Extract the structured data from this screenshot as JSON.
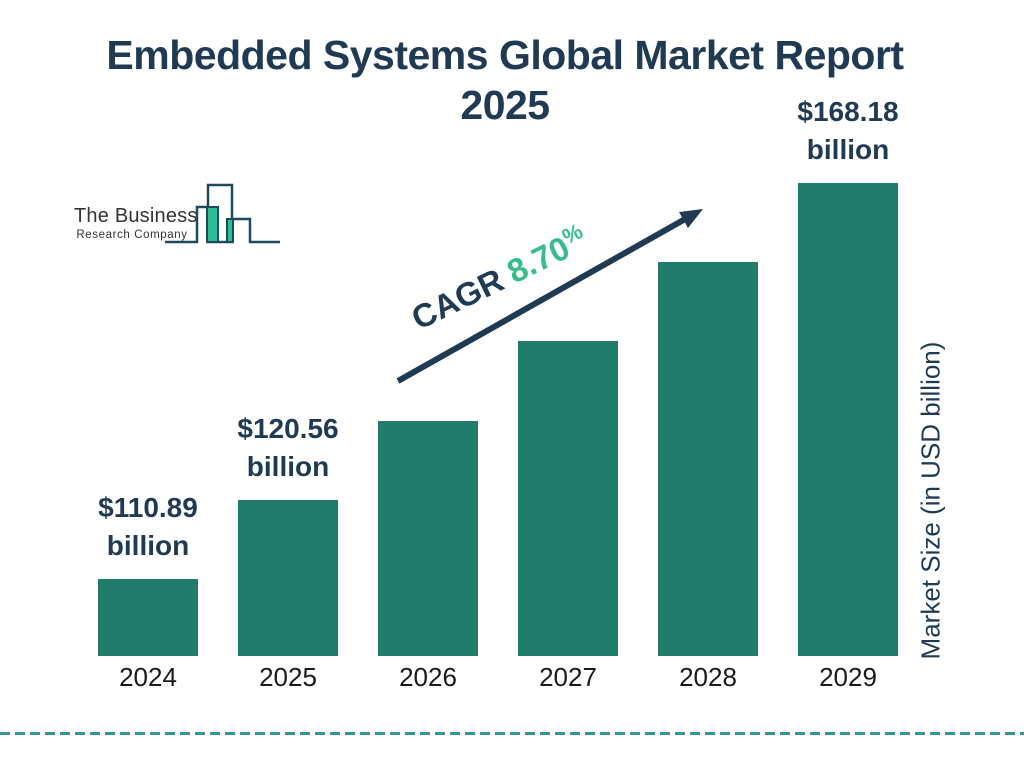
{
  "title": {
    "line1": "Embedded Systems Global Market Report",
    "line2": "2025"
  },
  "logo": {
    "name_line1": "The Business",
    "name_line2": "Research Company",
    "icon": "bar-chart-skyline-icon"
  },
  "cagr": {
    "label": "CAGR",
    "value": "8.70",
    "percent_sign": "%"
  },
  "y_axis_label": "Market Size (in USD billion)",
  "bars": [
    {
      "year": "2024",
      "label_value": "$110.89",
      "label_unit": "billion"
    },
    {
      "year": "2025",
      "label_value": "$120.56",
      "label_unit": "billion"
    },
    {
      "year": "2026"
    },
    {
      "year": "2027"
    },
    {
      "year": "2028"
    },
    {
      "year": "2029",
      "label_value": "$168.18",
      "label_unit": "billion"
    }
  ],
  "chart_data": {
    "type": "bar",
    "title": "Embedded Systems Global Market Report 2025",
    "categories": [
      "2024",
      "2025",
      "2026",
      "2027",
      "2028",
      "2029"
    ],
    "values": [
      110.89,
      120.56,
      null,
      null,
      null,
      168.18
    ],
    "value_labels": [
      "$110.89 billion",
      "$120.56 billion",
      "",
      "",
      "",
      "$168.18 billion"
    ],
    "cagr_annotation": "CAGR 8.70%",
    "xlabel": "",
    "ylabel": "Market Size (in USD billion)",
    "grid": false,
    "legend": false,
    "bar_color": "#227C6C",
    "note": "bar heights drawn as uniform visual ramp, only 2024, 2025 and 2029 carry data labels"
  },
  "colors": {
    "navy": "#1F3A52",
    "bar_teal": "#227C6C",
    "accent_green": "#35BE8B",
    "dashed_line": "#2E9A93",
    "logo_outline": "#1D4B5B",
    "logo_green": "#2FBE92",
    "year_text": "#1A1A1A"
  }
}
